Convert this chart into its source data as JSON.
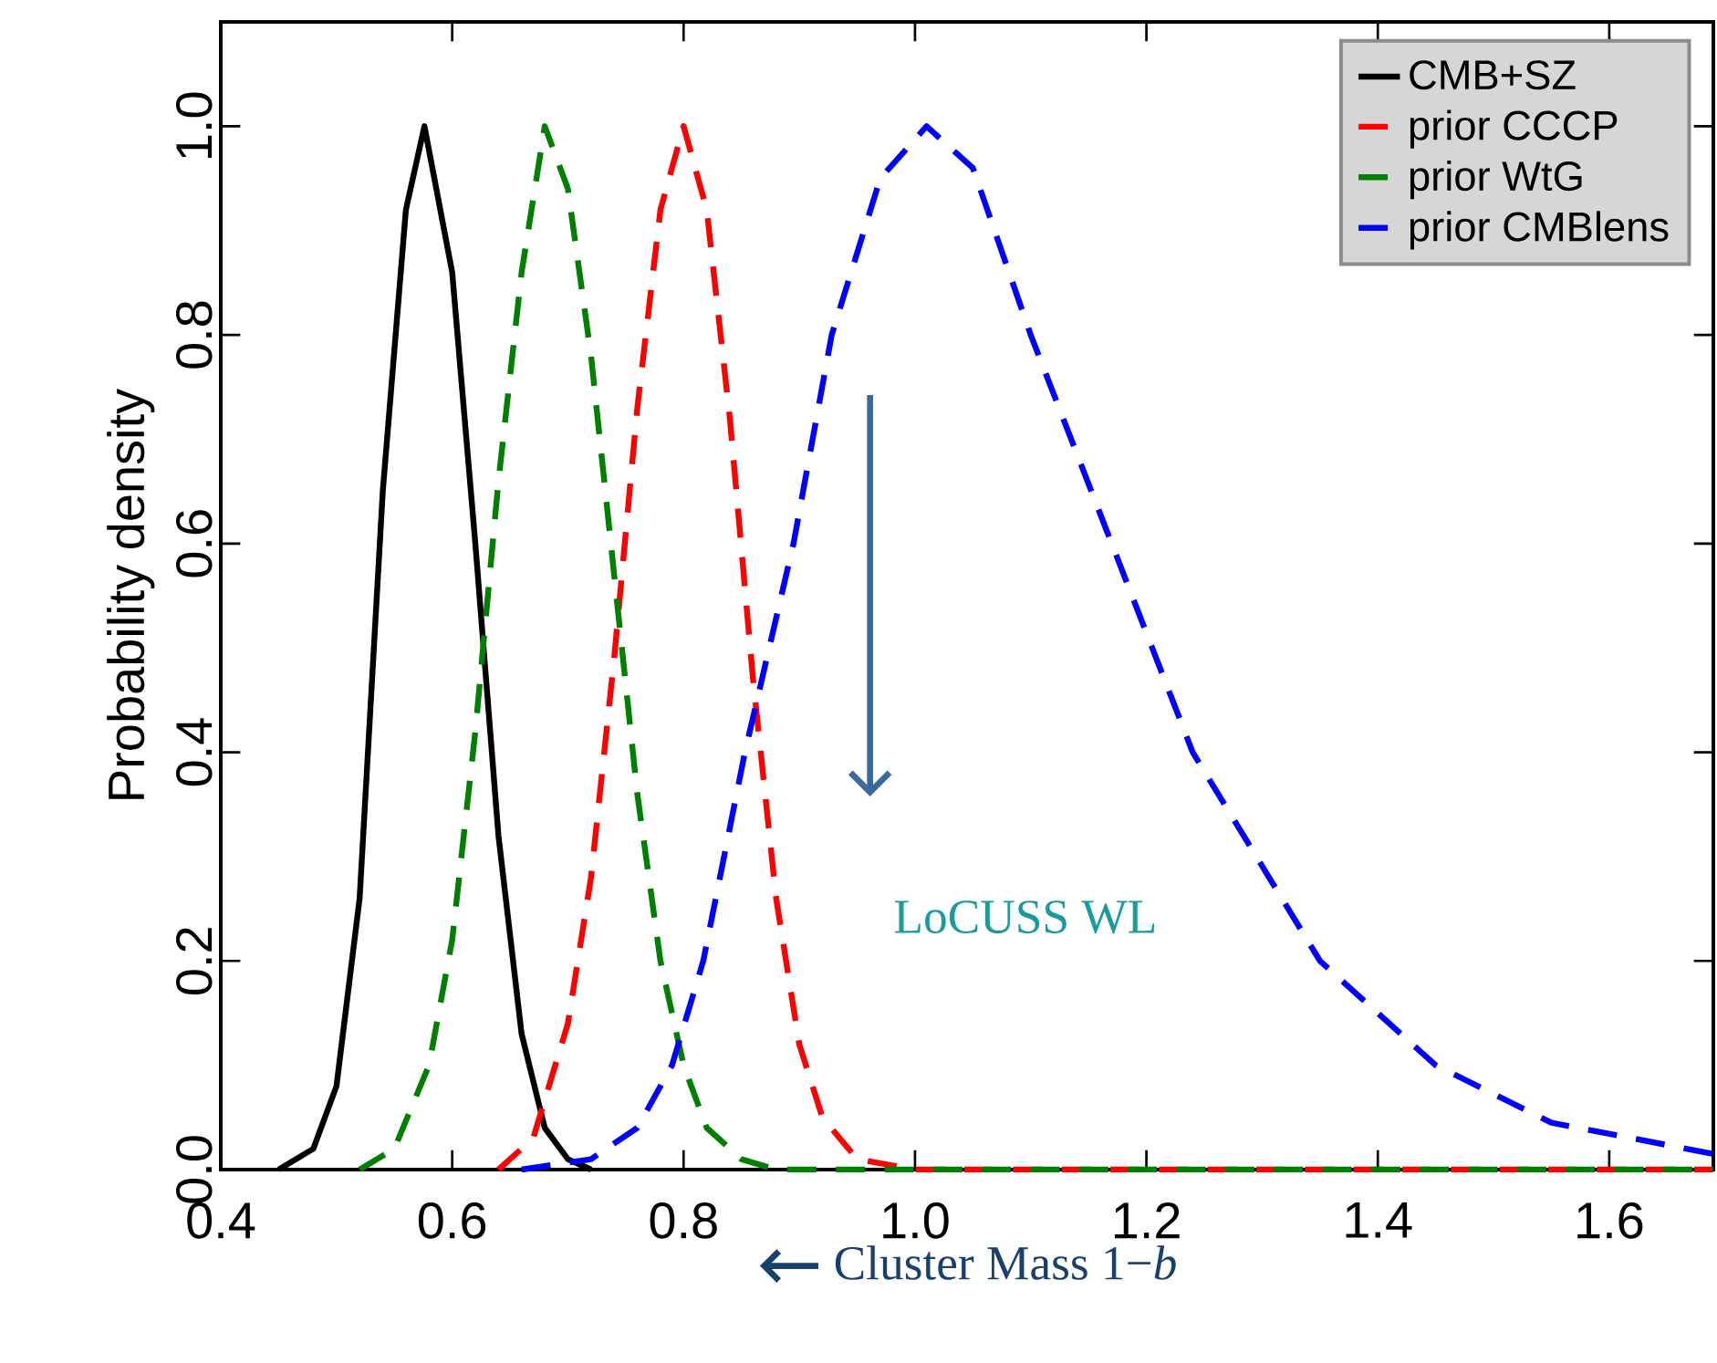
{
  "chart_data": {
    "type": "line",
    "xlabel": "Cluster Mass 1−*b*",
    "ylabel": "Probability density",
    "xlim": [
      0.4,
      1.69
    ],
    "ylim": [
      0,
      1.1
    ],
    "xticks": [
      0.4,
      0.6,
      0.8,
      {
        "value": 1.0,
        "label": "1.0"
      },
      1.2,
      1.4,
      1.6
    ],
    "yticks": [
      {
        "value": 0,
        "label": "0.0"
      },
      0.2,
      0.4,
      0.6,
      0.8,
      {
        "value": 1.0,
        "label": "1.0"
      }
    ],
    "legend": "top right",
    "grid": false,
    "marker": "none",
    "annotations": [
      "LoCUSS WL"
    ],
    "series": [
      {
        "name": "CMB+SZ",
        "color": "#000000",
        "line_style": "solid",
        "x": [
          0.45,
          0.48,
          0.5,
          0.52,
          0.54,
          0.56,
          0.576,
          0.6,
          0.62,
          0.64,
          0.66,
          0.68,
          0.7,
          0.72
        ],
        "values": [
          0,
          0.02,
          0.08,
          0.26,
          0.65,
          0.92,
          1.0,
          0.86,
          0.6,
          0.32,
          0.13,
          0.04,
          0.01,
          0
        ]
      },
      {
        "name": "prior CCCP",
        "color": "#ff0000",
        "line_style": "dashed",
        "x": [
          0.64,
          0.67,
          0.7,
          0.72,
          0.74,
          0.76,
          0.78,
          0.8,
          0.82,
          0.84,
          0.86,
          0.88,
          0.9,
          0.92,
          0.95,
          1.0,
          1.69
        ],
        "values": [
          0,
          0.03,
          0.14,
          0.28,
          0.49,
          0.73,
          0.92,
          1.0,
          0.92,
          0.72,
          0.47,
          0.26,
          0.12,
          0.05,
          0.01,
          0,
          0
        ]
      },
      {
        "name": "prior WtG",
        "color": "#008000",
        "line_style": "dashed",
        "x": [
          0.52,
          0.55,
          0.58,
          0.6,
          0.62,
          0.64,
          0.66,
          0.68,
          0.7,
          0.72,
          0.74,
          0.76,
          0.78,
          0.8,
          0.82,
          0.85,
          0.88,
          1.69
        ],
        "values": [
          0,
          0.02,
          0.1,
          0.22,
          0.42,
          0.66,
          0.86,
          1.0,
          0.94,
          0.78,
          0.57,
          0.36,
          0.2,
          0.1,
          0.04,
          0.01,
          0,
          0
        ]
      },
      {
        "name": "prior CMBlens",
        "color": "#0000ff",
        "line_style": "dashed",
        "x": [
          0.66,
          0.72,
          0.76,
          0.79,
          0.817,
          0.853,
          0.895,
          0.928,
          0.97,
          1.01,
          1.05,
          1.1,
          1.17,
          1.24,
          1.35,
          1.45,
          1.55,
          1.69
        ],
        "values": [
          0,
          0.01,
          0.04,
          0.1,
          0.2,
          0.4,
          0.6,
          0.8,
          0.95,
          1.0,
          0.96,
          0.8,
          0.6,
          0.4,
          0.2,
          0.1,
          0.045,
          0.015
        ]
      }
    ]
  }
}
